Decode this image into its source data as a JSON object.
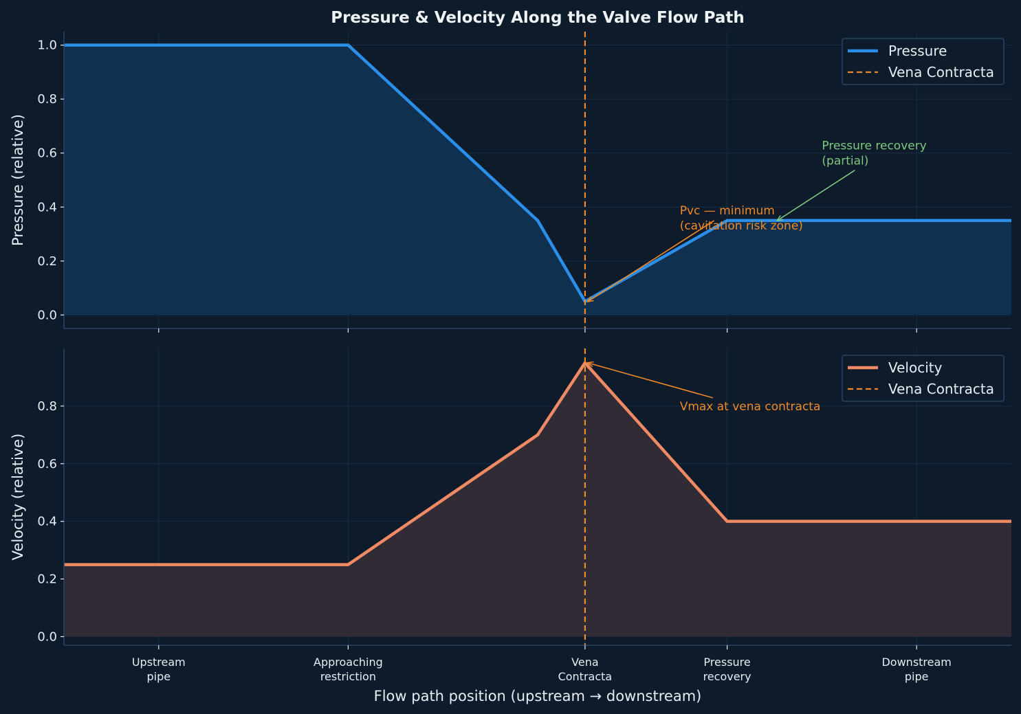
{
  "chart_data": {
    "title": "Pressure & Velocity Along the Valve Flow Path",
    "xlabel": "Flow path position (upstream → downstream)",
    "xlim": [
      -0.5,
      4.5
    ],
    "x_ticks": [
      {
        "x": 0,
        "lines": [
          "Upstream",
          "pipe"
        ]
      },
      {
        "x": 1,
        "lines": [
          "Approaching",
          "restriction"
        ]
      },
      {
        "x": 2.25,
        "lines": [
          "Vena",
          "Contracta"
        ]
      },
      {
        "x": 3,
        "lines": [
          "Pressure",
          "recovery"
        ]
      },
      {
        "x": 4,
        "lines": [
          "Downstream",
          "pipe"
        ]
      }
    ],
    "vline_x": 2.25,
    "colors": {
      "background": "#0d1b2a",
      "pressure": "#2b8ee8",
      "pressure_fill": "#10304f",
      "velocity": "#f08a64",
      "velocity_fill": "#302b35",
      "vline": "#f08a2a",
      "grid": "#1a2e45",
      "spine": "#2a4468",
      "recovery_annot": "#7fc97f",
      "min_annot": "#f0892a"
    },
    "panels": [
      {
        "type": "area",
        "ylabel": "Pressure (relative)",
        "ylim": [
          -0.05,
          1.05
        ],
        "yticks": [
          0.0,
          0.2,
          0.4,
          0.6,
          0.8,
          1.0
        ],
        "series": [
          {
            "name": "Pressure",
            "x": [
              -0.5,
              1.0,
              2.0,
              2.25,
              3.0,
              4.5
            ],
            "y": [
              1.0,
              1.0,
              0.35,
              0.05,
              0.35,
              0.35
            ]
          }
        ],
        "legend": [
          "Pressure",
          "Vena Contracta"
        ],
        "annotations": [
          {
            "text": [
              "Pvc — minimum",
              "(cavitation risk zone)"
            ],
            "xy": [
              2.25,
              0.05
            ],
            "xytext": [
              2.75,
              0.36
            ],
            "color_key": "min_annot"
          },
          {
            "text": [
              "Pressure recovery",
              "(partial)"
            ],
            "xy": [
              3.25,
              0.35
            ],
            "xytext": [
              3.5,
              0.6
            ],
            "color_key": "recovery_annot"
          }
        ]
      },
      {
        "type": "area",
        "ylabel": "Velocity (relative)",
        "ylim": [
          -0.03,
          1.0
        ],
        "yticks": [
          0.0,
          0.2,
          0.4,
          0.6,
          0.8
        ],
        "series": [
          {
            "name": "Velocity",
            "x": [
              -0.5,
              1.0,
              2.0,
              2.25,
              3.0,
              4.5
            ],
            "y": [
              0.25,
              0.25,
              0.7,
              0.95,
              0.4,
              0.4
            ]
          }
        ],
        "legend": [
          "Velocity",
          "Vena Contracta"
        ],
        "annotations": [
          {
            "text": [
              "Vmax at vena contracta"
            ],
            "xy": [
              2.25,
              0.95
            ],
            "xytext": [
              2.75,
              0.8
            ],
            "color_key": "min_annot"
          }
        ]
      }
    ]
  }
}
